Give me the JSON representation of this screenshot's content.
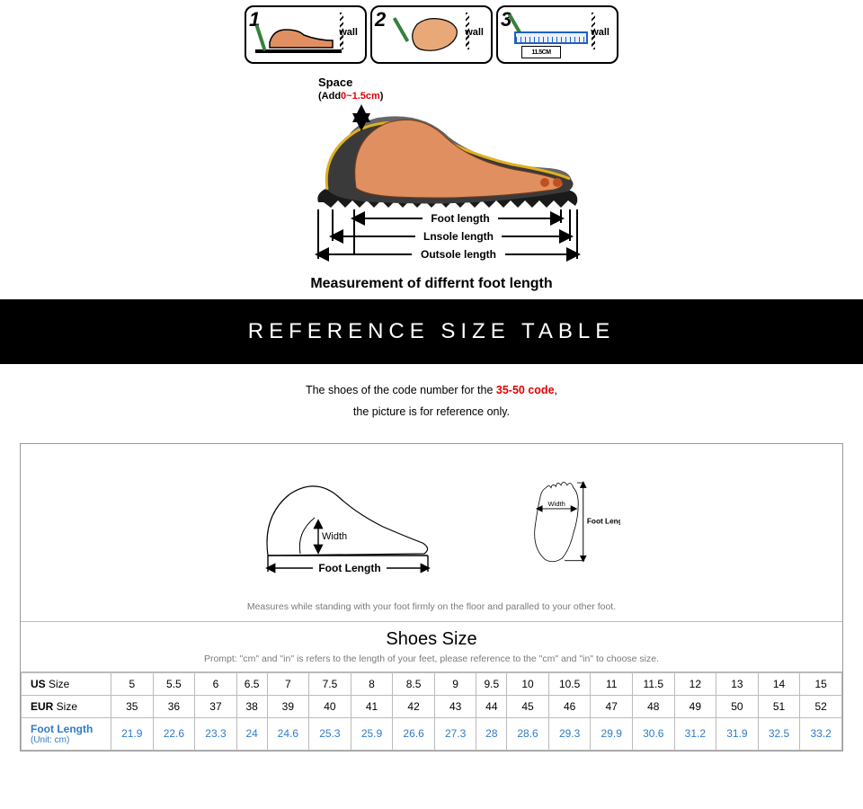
{
  "steps": {
    "nums": [
      "1",
      "2",
      "3"
    ],
    "wall_label": "wall",
    "step3_dim": "11.5CM"
  },
  "diagram": {
    "space_label": "Space",
    "add_label": "(Add",
    "add_value": "0~1.5cm",
    "close_paren": ")",
    "foot_length": "Foot length",
    "insole_length": "Lnsole length",
    "outsole_length": "Outsole length",
    "caption": "Measurement of differnt foot length",
    "colors": {
      "foot": "#e09060",
      "shoe_top": "#3a3a3a",
      "sole_dark": "#1a1a1a",
      "shadow": "#555",
      "outline_gold": "#e0b020"
    }
  },
  "banner": "REFERENCE SIZE TABLE",
  "subtext": {
    "line1_pre": "The shoes of the code number for the ",
    "code": "35-50 code",
    "line1_post": ",",
    "line2": "the picture is for reference only."
  },
  "ref": {
    "width_label": "Width",
    "foot_length_label": "Foot Length",
    "hint": "Measures while standing with your foot firmly on the floor and paralled to your other foot."
  },
  "table": {
    "title": "Shoes Size",
    "prompt": "Prompt: \"cm\" and \"in\" is refers to the length of your feet, please reference to the \"cm\" and \"in\" to choose size.",
    "rows": [
      {
        "head": "US",
        "sub": "",
        "class": "us",
        "cells": [
          "5",
          "5.5",
          "6",
          "6.5",
          "7",
          "7.5",
          "8",
          "8.5",
          "9",
          "9.5",
          "10",
          "10.5",
          "11",
          "11.5",
          "12",
          "13",
          "14",
          "15"
        ]
      },
      {
        "head": "EUR",
        "sub": "",
        "class": "eur",
        "cells": [
          "35",
          "36",
          "37",
          "38",
          "39",
          "40",
          "41",
          "42",
          "43",
          "44",
          "45",
          "46",
          "47",
          "48",
          "49",
          "50",
          "51",
          "52"
        ]
      },
      {
        "head": "Foot Length",
        "sub": "(Unit: cm)",
        "class": "footlen",
        "cells": [
          "21.9",
          "22.6",
          "23.3",
          "24",
          "24.6",
          "25.3",
          "25.9",
          "26.6",
          "27.3",
          "28",
          "28.6",
          "29.3",
          "29.9",
          "30.6",
          "31.2",
          "31.9",
          "32.5",
          "33.2"
        ]
      }
    ]
  }
}
